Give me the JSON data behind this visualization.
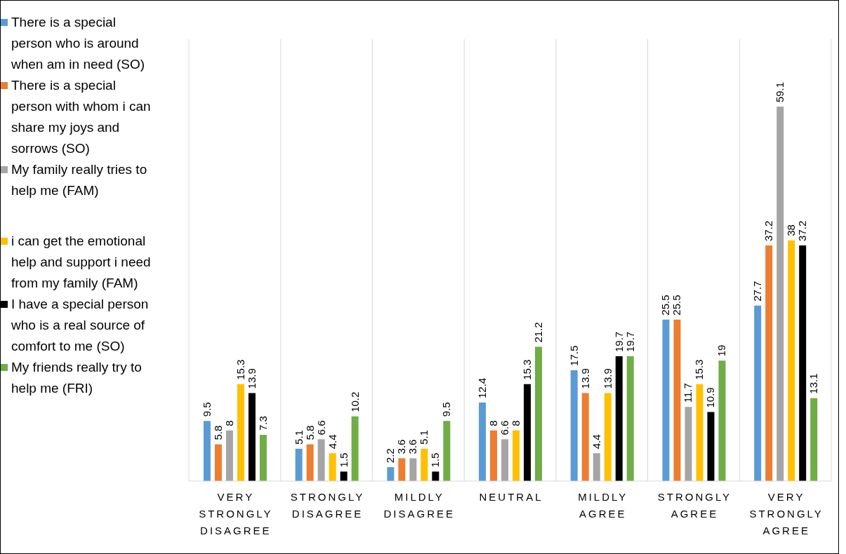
{
  "chart_data": {
    "type": "bar",
    "categories": [
      "VERY STRONGLY DISAGREE",
      "STRONGLY DISAGREE",
      "MILDLY DISAGREE",
      "NEUTRAL",
      "MILDLY AGREE",
      "STRONGLY AGREE",
      "VERY STRONGLY AGREE"
    ],
    "series": [
      {
        "name": "There is a special person who is around when am in need (SO)",
        "color": "#5b9bd5",
        "values": [
          9.5,
          5.1,
          2.2,
          12.4,
          17.5,
          25.5,
          27.7
        ]
      },
      {
        "name": "There is a special person with whom i can share my joys and sorrows (SO)",
        "color": "#ed7d31",
        "values": [
          5.8,
          5.8,
          3.6,
          8,
          13.9,
          25.5,
          37.2
        ]
      },
      {
        "name": "My family really tries to help me (FAM)",
        "color": "#a5a5a5",
        "values": [
          8,
          6.6,
          3.6,
          6.6,
          4.4,
          11.7,
          59.1
        ]
      },
      {
        "name": "i can get the emotional help and support i need from my family (FAM)",
        "color": "#ffc000",
        "values": [
          15.3,
          4.4,
          5.1,
          8,
          13.9,
          15.3,
          38
        ]
      },
      {
        "name": " I have a special person who is a real source of comfort to me (SO)",
        "color": "#000000",
        "values": [
          13.9,
          1.5,
          1.5,
          15.3,
          19.7,
          10.9,
          37.2
        ]
      },
      {
        "name": "My friends really try to help me (FRI)",
        "color": "#70ad47",
        "values": [
          7.3,
          10.2,
          9.5,
          21.2,
          19.7,
          19,
          13.1
        ]
      }
    ],
    "data_labels": true,
    "grid": "x",
    "legend": "left"
  }
}
